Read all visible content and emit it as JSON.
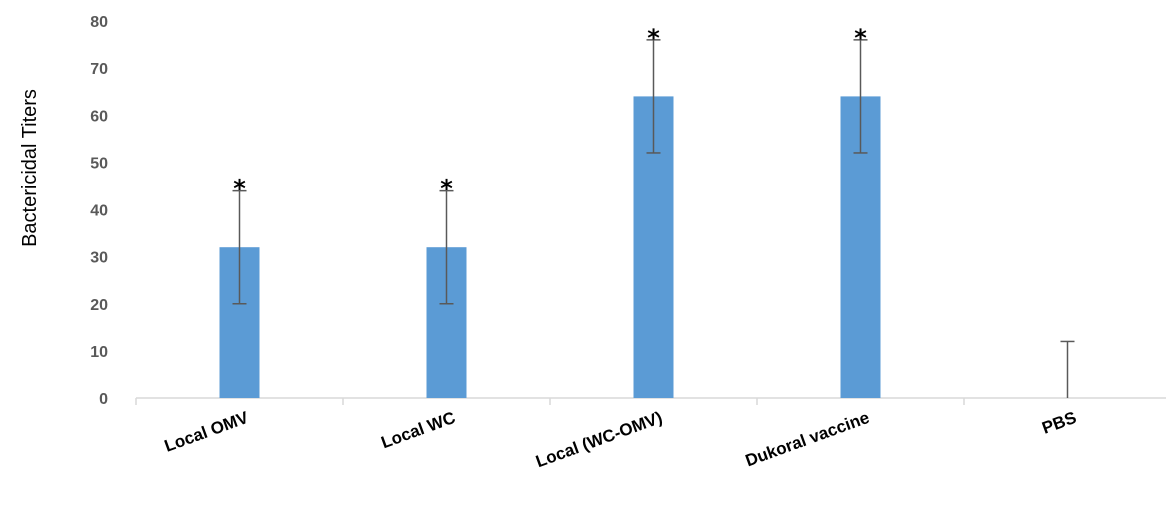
{
  "chart_data": {
    "type": "bar",
    "title": "",
    "xlabel": "",
    "ylabel": "Bactericidal Titers",
    "ylim": [
      0,
      80
    ],
    "yticks": [
      0,
      10,
      20,
      30,
      40,
      50,
      60,
      70,
      80
    ],
    "categories": [
      "Local OMV",
      "Local WC",
      "Local (WC-OMV)",
      "Dukoral vaccine",
      "PBS"
    ],
    "values": [
      32,
      32,
      64,
      64,
      0
    ],
    "error_upper": [
      12,
      12,
      12,
      12,
      12
    ],
    "error_lower": [
      12,
      12,
      12,
      12,
      0
    ],
    "annotations": [
      "*",
      "*",
      "*",
      "*",
      ""
    ],
    "grid": false,
    "legend": "none",
    "bar_color": "#5b9bd5",
    "error_color": "#595959"
  }
}
